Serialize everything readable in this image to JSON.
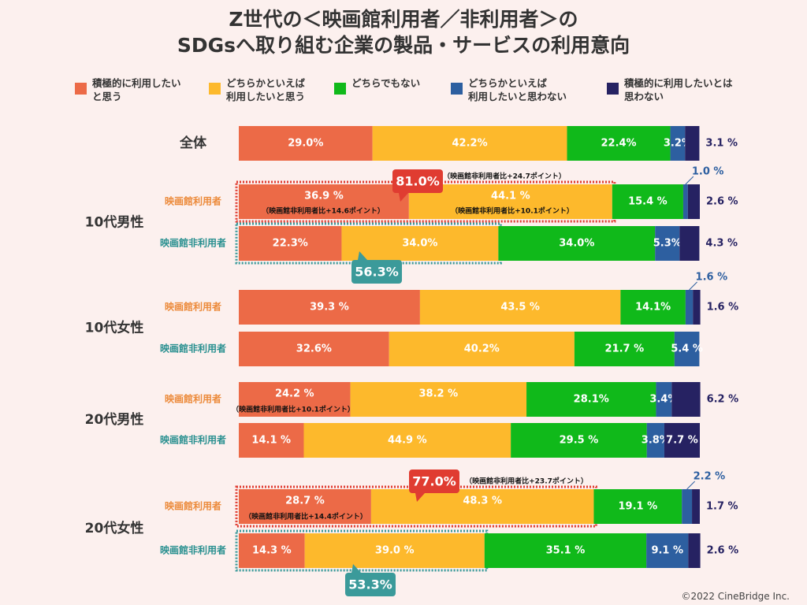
{
  "chart_data": {
    "type": "stacked-bar-horizontal",
    "title": "Z世代の＜映画館利用者／非利用者＞の\nSDGsへ取り組む企業の製品・サービスの利用意向",
    "categories": [
      "全体",
      "映画館利用者",
      "映画館非利用者",
      "映画館利用者",
      "映画館非利用者",
      "映画館利用者",
      "映画館非利用者",
      "映画館利用者",
      "映画館非利用者"
    ],
    "group_labels": [
      "10代男性",
      "10代女性",
      "20代男性",
      "20代女性"
    ],
    "series": [
      {
        "name": "積極的に利用したい\nと思う",
        "color": "#ec6a47",
        "values": [
          29.0,
          36.9,
          22.3,
          39.3,
          32.6,
          24.2,
          14.1,
          28.7,
          14.3
        ],
        "value_labels": [
          "29.0%",
          "36.9 %",
          "22.3%",
          "39.3 %",
          "32.6%",
          "24.2 %",
          "14.1 %",
          "28.7 %",
          "14.3 %"
        ]
      },
      {
        "name": "どちらかといえば\n利用したいと思う",
        "color": "#fdb92c",
        "values": [
          42.2,
          44.1,
          34.0,
          43.5,
          40.2,
          38.2,
          44.9,
          48.3,
          39.0
        ],
        "value_labels": [
          "42.2%",
          "44.1 %",
          "34.0%",
          "43.5 %",
          "40.2%",
          "38.2 %",
          "44.9 %",
          "48.3 %",
          "39.0 %"
        ]
      },
      {
        "name": "どちらでもない",
        "color": "#10b91a",
        "values": [
          22.4,
          15.4,
          34.0,
          14.1,
          21.7,
          28.1,
          29.5,
          19.1,
          35.1
        ],
        "value_labels": [
          "22.4%",
          "15.4 %",
          "34.0%",
          "14.1%",
          "21.7 %",
          "28.1%",
          "29.5 %",
          "19.1 %",
          "35.1 %"
        ]
      },
      {
        "name": "どちらかといえば\n利用したいと思わない",
        "color": "#2d5fa0",
        "values": [
          3.2,
          1.0,
          5.3,
          1.6,
          5.4,
          3.4,
          3.8,
          2.2,
          9.1
        ],
        "value_labels": [
          "3.2%",
          "1.0 %",
          "5.3%",
          "1.6 %",
          "5.4 %",
          "3.4%",
          "3.8%",
          "2.2 %",
          "9.1 %"
        ]
      },
      {
        "name": "積極的に利用したいとは\n思わない",
        "color": "#262262",
        "values": [
          3.1,
          2.6,
          4.3,
          1.6,
          null,
          6.2,
          7.7,
          1.7,
          2.6
        ],
        "value_labels": [
          "3.1 %",
          "2.6 %",
          "4.3 %",
          "1.6 %",
          null,
          "6.2 %",
          "7.7 %",
          "1.7 %",
          "2.6 %"
        ]
      }
    ],
    "annotations": [
      "81.0%",
      "（映画館非利用者比+24.7ポイント）",
      "（映画館非利用者比+14.6ポイント）",
      "（映画館非利用者比+10.1ポイント）",
      "56.3%",
      "（映画館非利用者比+10.1ポイント）",
      "77.0%",
      "（映画館非利用者比+23.7ポイント）",
      "（映画館非利用者比+14.4ポイント）",
      "53.3%"
    ],
    "source": "©2022 CineBridge Inc."
  }
}
